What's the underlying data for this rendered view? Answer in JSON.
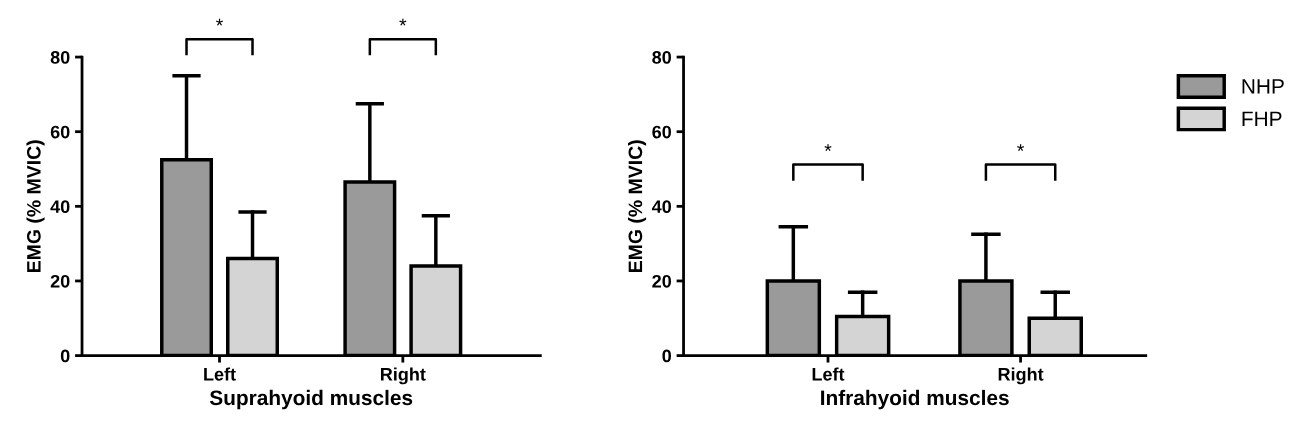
{
  "chart_data": [
    {
      "type": "bar",
      "xlabel": "Suprahyoid muscles",
      "ylabel": "EMG (% MVIC)",
      "categories": [
        "Left",
        "Right"
      ],
      "ylim": [
        0,
        80
      ],
      "yticks": [
        0,
        20,
        40,
        60,
        80
      ],
      "grid": false,
      "legend": false,
      "series": [
        {
          "color": "#9a9a9a",
          "values": [
            52.5,
            46.5
          ],
          "errors": [
            [
              52.5,
              75
            ],
            [
              46.5,
              67.5
            ]
          ]
        },
        {
          "color": "#d4d4d4",
          "values": [
            26,
            24
          ],
          "errors": [
            [
              26,
              38.5
            ],
            [
              24,
              37.5
            ]
          ]
        }
      ],
      "annotations": [
        "*",
        "*"
      ]
    },
    {
      "type": "bar",
      "xlabel": "Infrahyoid muscles",
      "ylabel": "EMG (% MVIC)",
      "categories": [
        "Left",
        "Right"
      ],
      "ylim": [
        0,
        80
      ],
      "yticks": [
        0,
        20,
        40,
        60,
        80
      ],
      "grid": false,
      "legend": "top right",
      "series": [
        {
          "name": "NHP",
          "color": "#9a9a9a",
          "values": [
            20,
            20
          ],
          "errors": [
            [
              20,
              34.5
            ],
            [
              20,
              32.5
            ]
          ]
        },
        {
          "name": "FHP",
          "color": "#d4d4d4",
          "values": [
            10.5,
            10
          ],
          "errors": [
            [
              10.5,
              17
            ],
            [
              10,
              17
            ]
          ]
        }
      ],
      "annotations": [
        "*",
        "*"
      ]
    }
  ]
}
